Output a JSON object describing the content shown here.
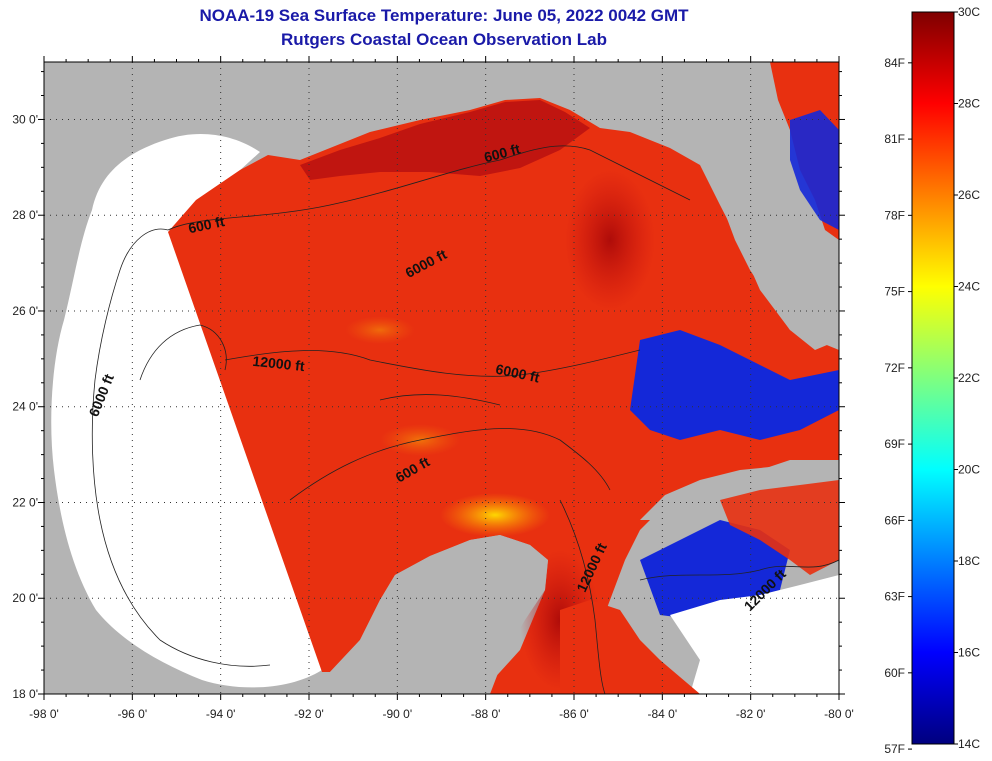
{
  "title_line_1": "NOAA-19 Sea Surface Temperature:  June 05, 2022 0042 GMT",
  "title_line_2": "Rutgers Coastal Ocean Observation Lab",
  "lon_ticks": [
    {
      "value": -98,
      "label": "-98 0'"
    },
    {
      "value": -96,
      "label": "-96 0'"
    },
    {
      "value": -94,
      "label": "-94 0'"
    },
    {
      "value": -92,
      "label": "-92 0'"
    },
    {
      "value": -90,
      "label": "-90 0'"
    },
    {
      "value": -88,
      "label": "-88 0'"
    },
    {
      "value": -86,
      "label": "-86 0'"
    },
    {
      "value": -84,
      "label": "-84 0'"
    },
    {
      "value": -82,
      "label": "-82 0'"
    },
    {
      "value": -80,
      "label": "-80 0'"
    }
  ],
  "lat_ticks": [
    {
      "value": 18,
      "label": "18 0'"
    },
    {
      "value": 20,
      "label": "20 0'"
    },
    {
      "value": 22,
      "label": "22 0'"
    },
    {
      "value": 24,
      "label": "24 0'"
    },
    {
      "value": 26,
      "label": "26 0'"
    },
    {
      "value": 28,
      "label": "28 0'"
    },
    {
      "value": 30,
      "label": "30 0'"
    }
  ],
  "depth_labels": [
    {
      "text": "600 ft",
      "lon": -94.3,
      "lat": 27.7,
      "rotate": -12
    },
    {
      "text": "600 ft",
      "lon": -87.6,
      "lat": 29.2,
      "rotate": -15
    },
    {
      "text": "6000 ft",
      "lon": -89.3,
      "lat": 26.9,
      "rotate": -28
    },
    {
      "text": "6000 ft",
      "lon": -96.6,
      "lat": 24.2,
      "rotate": -68
    },
    {
      "text": "12000 ft",
      "lon": -92.7,
      "lat": 24.8,
      "rotate": 6
    },
    {
      "text": "6000 ft",
      "lon": -87.3,
      "lat": 24.6,
      "rotate": 12
    },
    {
      "text": "600 ft",
      "lon": -89.6,
      "lat": 22.6,
      "rotate": -30
    },
    {
      "text": "12000 ft",
      "lon": -85.5,
      "lat": 20.6,
      "rotate": -65
    },
    {
      "text": "12000 ft",
      "lon": -81.6,
      "lat": 20.1,
      "rotate": -45
    }
  ],
  "colorbar": {
    "celsius": [
      {
        "value": 30,
        "label": "30C"
      },
      {
        "value": 28,
        "label": "28C"
      },
      {
        "value": 26,
        "label": "26C"
      },
      {
        "value": 24,
        "label": "24C"
      },
      {
        "value": 22,
        "label": "22C"
      },
      {
        "value": 20,
        "label": "20C"
      },
      {
        "value": 18,
        "label": "18C"
      },
      {
        "value": 16,
        "label": "16C"
      },
      {
        "value": 14,
        "label": "14C"
      }
    ],
    "fahrenheit": [
      {
        "value": 84,
        "label": "84F"
      },
      {
        "value": 81,
        "label": "81F"
      },
      {
        "value": 78,
        "label": "78F"
      },
      {
        "value": 75,
        "label": "75F"
      },
      {
        "value": 72,
        "label": "72F"
      },
      {
        "value": 69,
        "label": "69F"
      },
      {
        "value": 66,
        "label": "66F"
      },
      {
        "value": 63,
        "label": "63F"
      },
      {
        "value": 60,
        "label": "60F"
      },
      {
        "value": 57,
        "label": "57F"
      }
    ],
    "colors": [
      "#00007f",
      "#0000ff",
      "#007fff",
      "#00ffff",
      "#7fff7f",
      "#ffff00",
      "#ff7f00",
      "#ff0000",
      "#7f0000"
    ]
  },
  "colors": {
    "title": "#1a1aa8",
    "land": "#b4b4b4",
    "no_data": "#ffffff",
    "sst_warm": "#e83010",
    "sst_dark": "#a80808",
    "sst_cool": "#1428d8"
  }
}
